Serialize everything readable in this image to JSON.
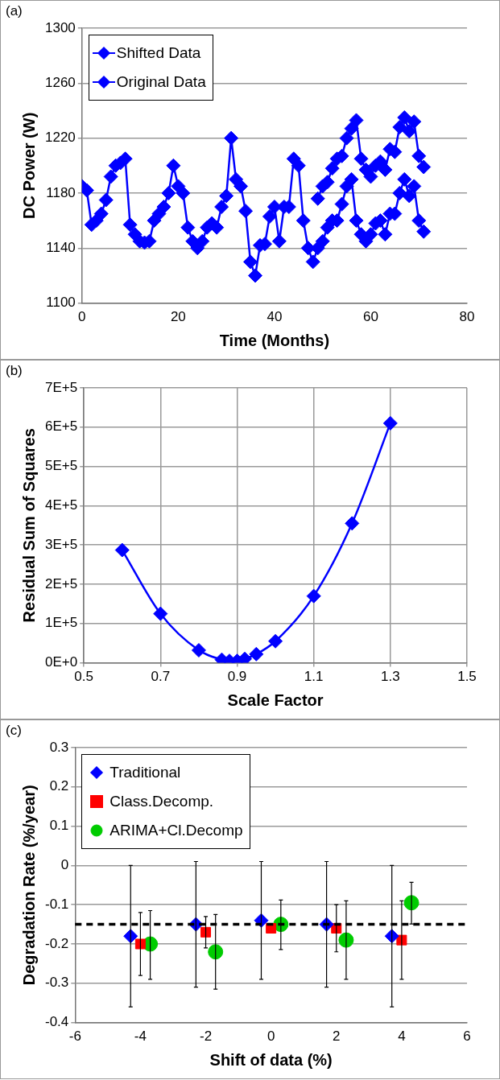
{
  "chart_data": [
    {
      "type": "line",
      "annotations": [
        "(a)"
      ],
      "xlabel": "Time (Months)",
      "ylabel": "DC Power (W)",
      "xlim": [
        0,
        80
      ],
      "xticks": [
        0,
        20,
        40,
        60,
        80
      ],
      "ylim": [
        1100,
        1300
      ],
      "yticks": [
        1100,
        1140,
        1180,
        1220,
        1260,
        1300
      ],
      "grid": "y",
      "legend": "top left",
      "line_style": "solid",
      "x": [
        0,
        1,
        2,
        3,
        4,
        5,
        6,
        7,
        8,
        9,
        10,
        11,
        12,
        13,
        14,
        15,
        16,
        17,
        18,
        19,
        20,
        21,
        22,
        23,
        24,
        25,
        26,
        27,
        28,
        29,
        30,
        31,
        32,
        33,
        34,
        35,
        36,
        37,
        38,
        39,
        40,
        41,
        42,
        43,
        44,
        45,
        46,
        47,
        48,
        49,
        50,
        51,
        52,
        53,
        54,
        55,
        56,
        57,
        58,
        59,
        60,
        61,
        62,
        63,
        64,
        65,
        66,
        67,
        68,
        69,
        70,
        71
      ],
      "series": [
        {
          "name": "Shifted Data",
          "color": "#0000ff",
          "marker": "diamond",
          "x": [
            49,
            50,
            51,
            52,
            53,
            54,
            55,
            56,
            57,
            58,
            59,
            60,
            61,
            62,
            63,
            64,
            65,
            66,
            67,
            68,
            69,
            70,
            71
          ],
          "values": [
            1176,
            1185,
            1188,
            1198,
            1205,
            1207,
            1220,
            1227,
            1233,
            1205,
            1197,
            1192,
            1200,
            1203,
            1197,
            1212,
            1210,
            1228,
            1235,
            1225,
            1232,
            1207,
            1199
          ]
        },
        {
          "name": "Original Data",
          "color": "#0000ff",
          "marker": "diamond",
          "values": [
            1185,
            1182,
            1157,
            1160,
            1165,
            1175,
            1192,
            1200,
            1202,
            1205,
            1157,
            1150,
            1145,
            1144,
            1145,
            1160,
            1165,
            1170,
            1180,
            1200,
            1185,
            1180,
            1155,
            1145,
            1140,
            1145,
            1155,
            1158,
            1155,
            1170,
            1178,
            1220,
            1190,
            1185,
            1167,
            1130,
            1120,
            1142,
            1143,
            1163,
            1170,
            1145,
            1170,
            1170,
            1205,
            1200,
            1160,
            1140,
            1130,
            1140,
            1145,
            1155,
            1160,
            1160,
            1172,
            1185,
            1190,
            1160,
            1150,
            1145,
            1150,
            1158,
            1160,
            1150,
            1165,
            1165,
            1180,
            1190,
            1178,
            1185,
            1160,
            1152
          ]
        }
      ]
    },
    {
      "type": "line",
      "annotations": [
        "(b)"
      ],
      "xlabel": "Scale Factor",
      "ylabel": "Residual Sum of Squares",
      "xlim": [
        0.5,
        1.5
      ],
      "xticks": [
        0.5,
        0.7,
        0.9,
        1.1,
        1.3,
        1.5
      ],
      "ylim": [
        0,
        700000
      ],
      "yticks": [
        {
          "value": 0,
          "label": "0E+0"
        },
        {
          "value": 100000,
          "label": "1E+5"
        },
        {
          "value": 200000,
          "label": "2E+5"
        },
        {
          "value": 300000,
          "label": "3E+5"
        },
        {
          "value": 400000,
          "label": "4E+5"
        },
        {
          "value": 500000,
          "label": "5E+5"
        },
        {
          "value": 600000,
          "label": "6E+5"
        },
        {
          "value": 700000,
          "label": "7E+5"
        }
      ],
      "grid": true,
      "line_style": "solid",
      "marker": "diamond",
      "x": [
        0.6,
        0.7,
        0.8,
        0.86,
        0.88,
        0.9,
        0.92,
        0.95,
        1.0,
        1.1,
        1.2,
        1.3
      ],
      "series": [
        {
          "color": "#0000ff",
          "values": [
            287000,
            125000,
            32000,
            8000,
            5000,
            5000,
            10000,
            22000,
            55000,
            170000,
            355000,
            610000
          ]
        }
      ]
    },
    {
      "type": "scatter",
      "annotations": [
        "(c)"
      ],
      "xlabel": "Shift of data (%)",
      "ylabel": "Degradation Rate (%/year)",
      "xlim": [
        -6,
        6
      ],
      "xticks": [
        -6,
        -4,
        -2,
        0,
        2,
        4,
        6
      ],
      "ylim": [
        -0.4,
        0.3
      ],
      "yticks": [
        -0.4,
        -0.3,
        -0.2,
        -0.1,
        0,
        0.1,
        0.2,
        0.3
      ],
      "grid": "y",
      "legend": "top left",
      "ref_lines": [
        {
          "axis": "y",
          "value": -0.15,
          "color": "#000000",
          "line_style": "dashed"
        }
      ],
      "series": [
        {
          "name": "Traditional",
          "color": "#0000ff",
          "marker": "diamond",
          "x": [
            -4.3,
            -2.3,
            -0.3,
            1.7,
            3.7
          ],
          "values": [
            -0.18,
            -0.15,
            -0.14,
            -0.15,
            -0.18
          ],
          "errors": [
            [
              -0.36,
              0
            ],
            [
              -0.31,
              0.01
            ],
            [
              -0.29,
              0.01
            ],
            [
              -0.31,
              0.01
            ],
            [
              -0.36,
              0
            ]
          ]
        },
        {
          "name": "Class.Decomp.",
          "color": "#ff0000",
          "marker": "square",
          "x": [
            -4,
            -2,
            0,
            2,
            4
          ],
          "values": [
            -0.2,
            -0.17,
            -0.16,
            -0.16,
            -0.19
          ],
          "errors": [
            [
              -0.28,
              -0.12
            ],
            [
              -0.21,
              -0.13
            ],
            null,
            [
              -0.22,
              -0.1
            ],
            [
              -0.29,
              -0.09
            ]
          ]
        },
        {
          "name": "ARIMA+Cl.Decomp",
          "color": "#00cc00",
          "marker": "circle",
          "x": [
            -3.7,
            -1.7,
            0.3,
            2.3,
            4.3
          ],
          "values": [
            -0.2,
            -0.22,
            -0.15,
            -0.19,
            -0.095
          ],
          "errors": [
            [
              -0.29,
              -0.115
            ],
            [
              -0.315,
              -0.125
            ],
            [
              -0.214,
              -0.088
            ],
            [
              -0.29,
              -0.09
            ],
            [
              -0.149,
              -0.043
            ]
          ]
        }
      ]
    }
  ]
}
